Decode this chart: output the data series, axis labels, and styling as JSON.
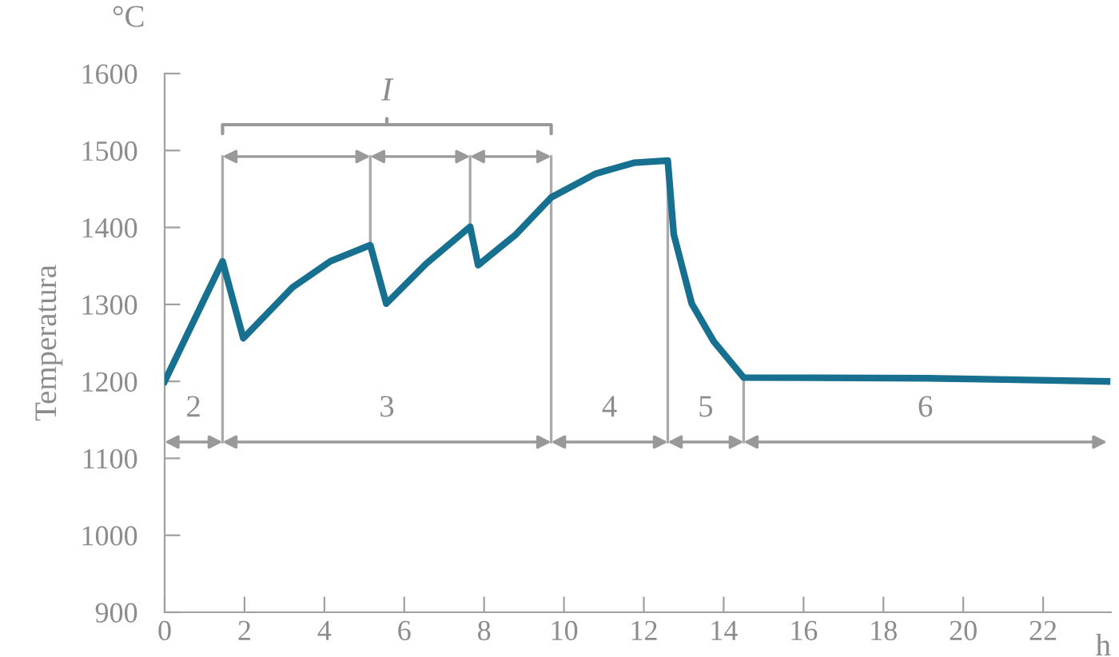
{
  "chart_data": {
    "type": "line",
    "ylabel": "Temperatura",
    "xlabel": "h",
    "annotations": [
      "°C",
      "I",
      "2",
      "3",
      "4",
      "5",
      "6"
    ],
    "series": [
      {
        "color": "#17708f",
        "x": [
          0,
          1.45,
          1.97,
          3.2,
          4.15,
          5.15,
          5.55,
          6.55,
          7.65,
          7.85,
          8.8,
          9.68,
          10.8,
          11.75,
          12.6,
          12.75,
          13.2,
          13.75,
          14.5,
          19.1,
          23.6
        ],
        "values": [
          1200,
          1356,
          1256,
          1322,
          1356,
          1377,
          1301,
          1353,
          1401,
          1351,
          1391,
          1439,
          1470,
          1484,
          1487,
          1391,
          1301,
          1252,
          1205,
          1204,
          1200
        ]
      }
    ],
    "ref_lines": [
      {
        "axis": "x",
        "value": 1.45,
        "color": "#aaaaaa"
      },
      {
        "axis": "x",
        "value": 9.68,
        "color": "#aaaaaa"
      },
      {
        "axis": "x",
        "value": 12.6,
        "color": "#aaaaaa"
      },
      {
        "axis": "x",
        "value": 14.5,
        "color": "#aaaaaa"
      },
      {
        "axis": "x",
        "value": 5.15,
        "color": "#aaaaaa"
      },
      {
        "axis": "x",
        "value": 7.65,
        "color": "#aaaaaa"
      }
    ],
    "xlim": [
      0,
      23.7
    ],
    "ylim": [
      900,
      1600
    ],
    "xticks": [
      0,
      2,
      4,
      6,
      8,
      10,
      12,
      14,
      16,
      18,
      20,
      22
    ],
    "yticks": [
      900,
      1000,
      1100,
      1200,
      1300,
      1400,
      1500,
      1600
    ],
    "grid": false,
    "legend": false,
    "marker": "none",
    "line_style": "solid"
  }
}
